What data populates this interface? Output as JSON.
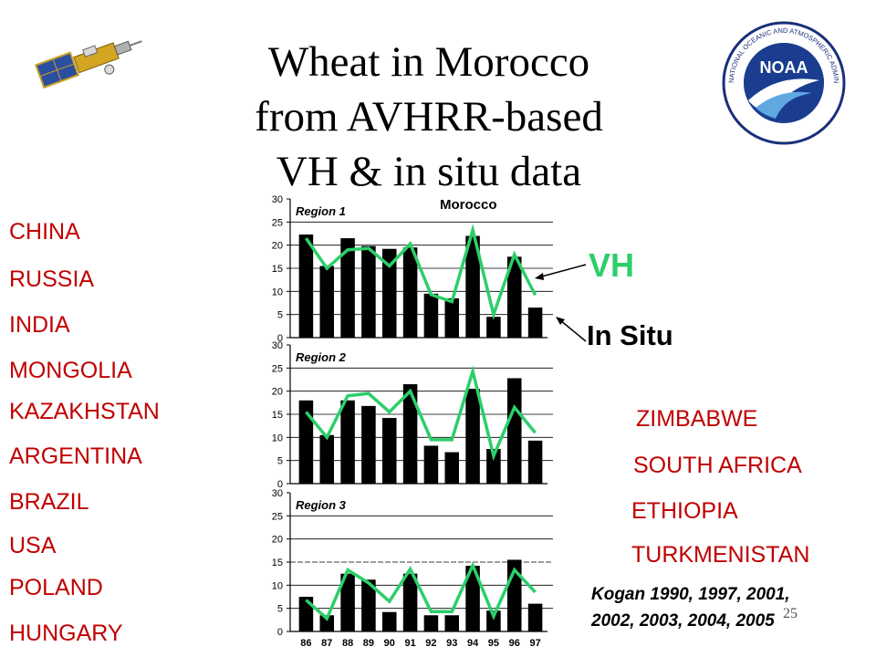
{
  "title_lines": [
    "Wheat in Morocco",
    "from AVHRR-based",
    "VH & in situ data"
  ],
  "left_countries": [
    "CHINA",
    "RUSSIA",
    "INDIA",
    "MONGOLIA",
    "KAZAKHSTAN",
    "ARGENTINA",
    "BRAZIL",
    "USA",
    "POLAND",
    "HUNGARY"
  ],
  "right_countries": [
    "ZIMBABWE",
    "SOUTH AFRICA",
    "ETHIOPIA",
    "TURKMENISTAN"
  ],
  "legend": {
    "vh": "VH",
    "in_situ": "In Situ"
  },
  "citation": [
    "Kogan 1990, 1997, 2001,",
    "2002, 2003, 2004, 2005"
  ],
  "page_number": "25",
  "colors": {
    "countries": "#c00000",
    "vh_line": "#2ccf6a",
    "bars": "#000000"
  },
  "logo_text": "NOAA",
  "seal_text": "NATIONAL OCEANIC AND ATMOSPHERIC ADMINISTRATION · U.S. DEPARTMENT OF COMMERCE",
  "chart_data": {
    "type": "bar",
    "title": "Morocco",
    "categories": [
      "86",
      "87",
      "88",
      "89",
      "90",
      "91",
      "92",
      "93",
      "94",
      "95",
      "96",
      "97"
    ],
    "ylim": [
      0,
      30
    ],
    "yticks": [
      0,
      5,
      10,
      15,
      20,
      25,
      30
    ],
    "panels": [
      {
        "label": "Region 1",
        "bars": [
          22.3,
          15.5,
          21.5,
          19.8,
          19.2,
          19.5,
          9.5,
          8.5,
          22,
          4.5,
          17.5,
          6.5
        ],
        "line": [
          21.5,
          15,
          19,
          19.3,
          15.5,
          20.3,
          9.3,
          7.8,
          23.3,
          5,
          18,
          9.2
        ]
      },
      {
        "label": "Region 2",
        "bars": [
          18,
          10.5,
          18,
          16.8,
          14.2,
          21.5,
          8.2,
          6.8,
          20.5,
          7.5,
          22.8,
          9.3
        ],
        "line": [
          15.5,
          10,
          19,
          19.5,
          15.5,
          20,
          9.5,
          9.5,
          24.3,
          6,
          16.5,
          11
        ]
      },
      {
        "label": "Region 3",
        "bars": [
          7.5,
          3.5,
          12.5,
          11.2,
          4.2,
          12.5,
          3.5,
          3.5,
          14.2,
          4.5,
          15.5,
          6
        ],
        "line": [
          6.8,
          2.8,
          13.3,
          10.5,
          6.5,
          13.5,
          4.3,
          4.3,
          14.3,
          3.3,
          13.3,
          8.5
        ]
      }
    ]
  }
}
